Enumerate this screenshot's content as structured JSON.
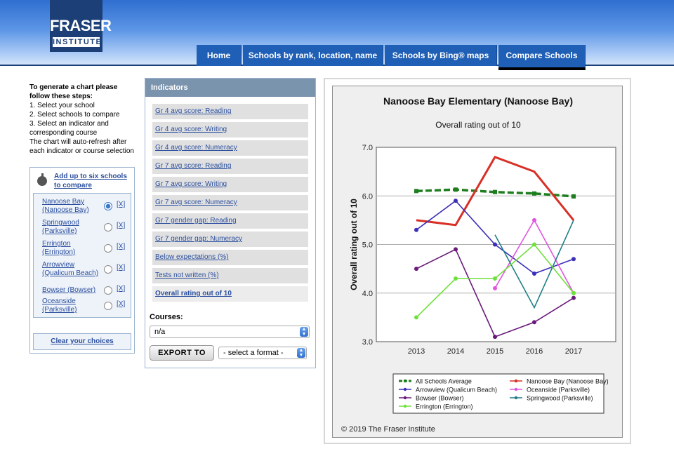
{
  "brand": {
    "logo_main": "FRASER",
    "logo_sub": "INSTITUTE"
  },
  "nav": {
    "tabs": [
      {
        "label": "Home"
      },
      {
        "label": "Schools by rank, location, name"
      },
      {
        "label": "Schools by Bing® maps"
      },
      {
        "label": "Compare Schools"
      }
    ],
    "active": "Compare Schools"
  },
  "steps": {
    "title": "To generate a chart please follow these steps:",
    "lines": [
      "1. Select your school",
      "2. Select schools to compare",
      "3. Select an indicator and corresponding course",
      "The chart will auto-refresh after each indicator or course selection"
    ]
  },
  "compare": {
    "add_label": "Add up to six schools to compare",
    "remove_label": "[X]",
    "schools": [
      {
        "name": "Nanoose Bay (Nanoose Bay)",
        "selected": true
      },
      {
        "name": "Springwood (Parksville)",
        "selected": false
      },
      {
        "name": "Errington (Errington)",
        "selected": false
      },
      {
        "name": "Arrowview (Qualicum Beach)",
        "selected": false
      },
      {
        "name": "Bowser (Bowser)",
        "selected": false
      },
      {
        "name": "Oceanside (Parksville)",
        "selected": false
      }
    ],
    "clear_label": "Clear your choices"
  },
  "indicators": {
    "title": "Indicators",
    "items": [
      "Gr 4 avg score: Reading",
      "Gr 4 avg score: Writing",
      "Gr 4 avg score: Numeracy",
      "Gr 7 avg score: Reading",
      "Gr 7 avg score: Writing",
      "Gr 7 avg score: Numeracy",
      "Gr 7 gender gap: Reading",
      "Gr 7 gender gap: Numeracy",
      "Below expectations (%)",
      "Tests not written (%)",
      "Overall rating out of 10"
    ],
    "active": "Overall rating out of 10",
    "courses_label": "Courses:",
    "course_value": "n/a",
    "export_label": "EXPORT TO",
    "format_value": "- select a format -"
  },
  "chart_data": {
    "type": "line",
    "title": "Nanoose Bay Elementary (Nanoose Bay)",
    "subtitle": "Overall rating out of 10",
    "ylabel": "Overall rating out of 10",
    "xlabel": "",
    "x": [
      2013,
      2014,
      2015,
      2016,
      2017
    ],
    "ylim": [
      3.0,
      7.0
    ],
    "yticks": [
      "3.0",
      "4.0",
      "5.0",
      "6.0",
      "7.0"
    ],
    "grid": true,
    "legend_position": "bottom",
    "series": [
      {
        "name": "All Schools Average",
        "color": "#1e7d1e",
        "dashed": true,
        "values": [
          6.1,
          6.13,
          6.08,
          6.05,
          5.99
        ]
      },
      {
        "name": "Nanoose Bay (Nanoose Bay)",
        "color": "#d73027",
        "dashed": false,
        "values": [
          5.5,
          5.4,
          6.8,
          6.5,
          5.5
        ]
      },
      {
        "name": "Arrowview (Qualicum Beach)",
        "color": "#3a2fb8",
        "dashed": false,
        "values": [
          5.3,
          5.9,
          5.0,
          4.4,
          4.7
        ]
      },
      {
        "name": "Oceanside (Parksville)",
        "color": "#e055e0",
        "dashed": false,
        "values": [
          null,
          null,
          4.1,
          5.5,
          4.0
        ]
      },
      {
        "name": "Bowser (Bowser)",
        "color": "#6a1a7a",
        "dashed": false,
        "values": [
          4.5,
          4.9,
          3.1,
          3.4,
          3.9
        ]
      },
      {
        "name": "Springwood (Parksville)",
        "color": "#1f7f86",
        "dashed": false,
        "values": [
          null,
          null,
          5.2,
          3.7,
          5.5
        ]
      },
      {
        "name": "Errington (Errington)",
        "color": "#6ee03a",
        "dashed": false,
        "values": [
          3.5,
          4.3,
          4.3,
          5.0,
          4.0
        ]
      }
    ],
    "copyright": "© 2019 The Fraser Institute"
  }
}
